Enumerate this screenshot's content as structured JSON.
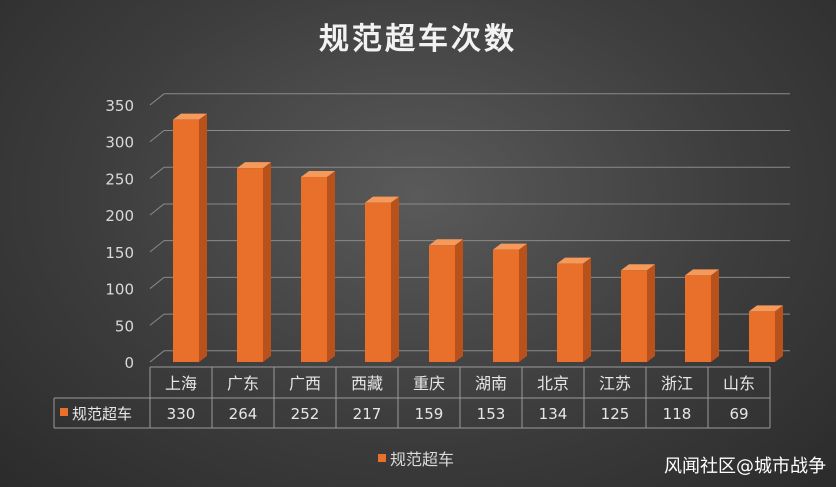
{
  "chart_data": {
    "type": "bar",
    "title": "规范超车次数",
    "categories": [
      "上海",
      "广东",
      "广西",
      "西藏",
      "重庆",
      "湖南",
      "北京",
      "江苏",
      "浙江",
      "山东"
    ],
    "series": [
      {
        "name": "规范超车",
        "values": [
          330,
          264,
          252,
          217,
          159,
          153,
          134,
          125,
          118,
          69
        ]
      }
    ],
    "yticks": [
      0,
      50,
      100,
      150,
      200,
      250,
      300,
      350
    ],
    "ylim": [
      0,
      350
    ],
    "grid": true,
    "legend": "bottom",
    "data_table": true,
    "colors": {
      "bar": "#e8702a",
      "bar_side": "#b8521a",
      "bar_top": "#f59a5a"
    }
  },
  "watermark": "风闻社区@城市战争"
}
